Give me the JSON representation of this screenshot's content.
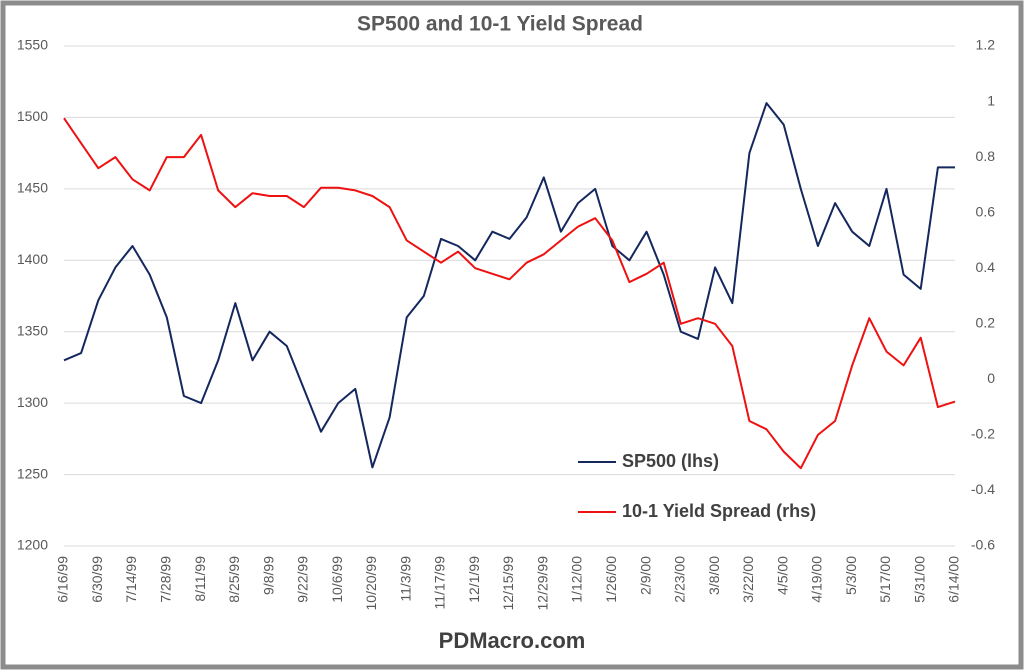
{
  "chart_data": {
    "type": "line",
    "title": "SP500 and 10-1 Yield Spread",
    "footer": "PDMacro.com",
    "categories": [
      "6/16/99",
      null,
      "6/30/99",
      null,
      "7/14/99",
      null,
      "7/28/99",
      null,
      "8/11/99",
      null,
      "8/25/99",
      null,
      "9/8/99",
      null,
      "9/22/99",
      null,
      "10/6/99",
      null,
      "10/20/99",
      null,
      "11/3/99",
      null,
      "11/17/99",
      null,
      "12/1/99",
      null,
      "12/15/99",
      null,
      "12/29/99",
      null,
      "1/12/00",
      null,
      "1/26/00",
      null,
      "2/9/00",
      null,
      "2/23/00",
      null,
      "3/8/00",
      null,
      "3/22/00",
      null,
      "4/5/00",
      null,
      "4/19/00",
      null,
      "5/3/00",
      null,
      "5/17/00",
      null,
      "5/31/00",
      null,
      "6/14/00"
    ],
    "series": [
      {
        "name": "SP500 (lhs)",
        "color": "#14285e",
        "axis": "y",
        "values": [
          1330,
          1335,
          1372,
          1395,
          1410,
          1390,
          1360,
          1305,
          1300,
          1330,
          1370,
          1330,
          1350,
          1340,
          1310,
          1280,
          1300,
          1310,
          1255,
          1290,
          1360,
          1375,
          1415,
          1410,
          1400,
          1420,
          1415,
          1430,
          1458,
          1420,
          1440,
          1450,
          1410,
          1400,
          1420,
          1390,
          1350,
          1345,
          1395,
          1370,
          1475,
          1510,
          1495,
          1450,
          1410,
          1440,
          1420,
          1410,
          1450,
          1390,
          1380,
          1465,
          1465
        ]
      },
      {
        "name": "10-1 Yield Spread (rhs)",
        "color": "#ee1111",
        "axis": "y2",
        "values": [
          0.94,
          0.85,
          0.76,
          0.8,
          0.72,
          0.68,
          0.8,
          0.8,
          0.88,
          0.68,
          0.62,
          0.67,
          0.66,
          0.66,
          0.62,
          0.69,
          0.69,
          0.68,
          0.66,
          0.62,
          0.5,
          0.46,
          0.42,
          0.46,
          0.4,
          0.38,
          0.36,
          0.42,
          0.45,
          0.5,
          0.55,
          0.58,
          0.5,
          0.35,
          0.38,
          0.42,
          0.2,
          0.22,
          0.2,
          0.12,
          -0.15,
          -0.18,
          -0.26,
          -0.32,
          -0.2,
          -0.15,
          0.05,
          0.22,
          0.1,
          0.05,
          0.15,
          -0.1,
          -0.08
        ]
      }
    ],
    "ylim": [
      1200,
      1550
    ],
    "yticks": [
      1200,
      1250,
      1300,
      1350,
      1400,
      1450,
      1500,
      1550
    ],
    "y2lim": [
      -0.6,
      1.2
    ],
    "y2ticks": [
      -0.6,
      -0.4,
      -0.2,
      0,
      0.2,
      0.4,
      0.6,
      0.8,
      1,
      1.2
    ],
    "grid": true
  }
}
